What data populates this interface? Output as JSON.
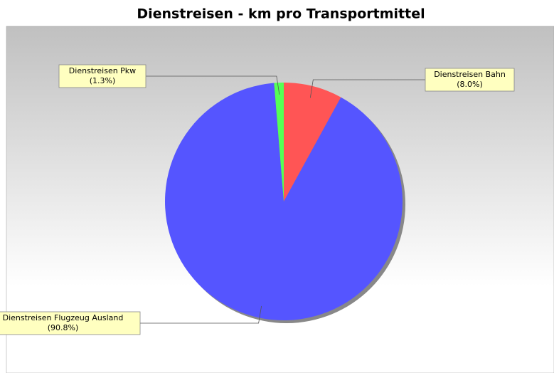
{
  "chart_data": {
    "type": "pie",
    "title": "Dienstreisen - km pro Transportmittel",
    "categories": [
      "Dienstreisen Bahn",
      "Dienstreisen Flugzeug Ausland",
      "Dienstreisen Pkw"
    ],
    "values": [
      8.0,
      90.8,
      1.3
    ],
    "value_labels": [
      "(8.0%)",
      "(90.8%)",
      "(1.3%)"
    ],
    "colors": [
      "#ff5555",
      "#5555ff",
      "#55ff55"
    ]
  }
}
